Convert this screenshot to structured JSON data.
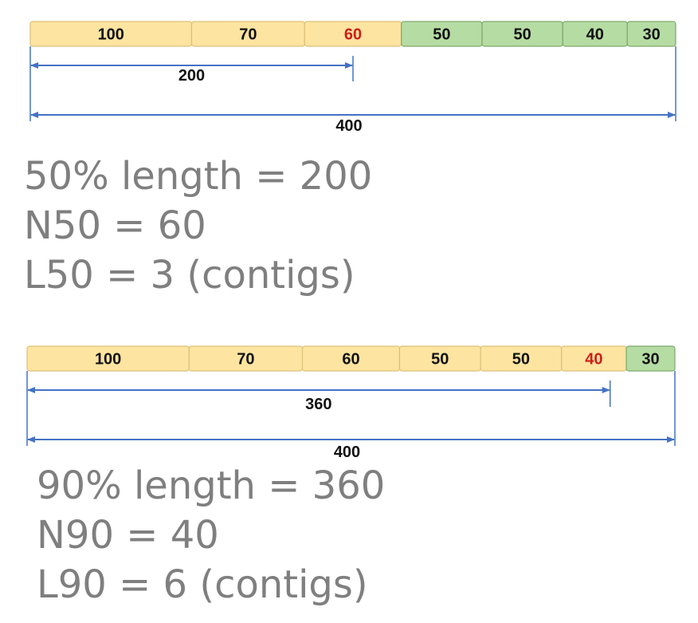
{
  "colors": {
    "yellow_fill": "#fde4a0",
    "yellow_stroke": "#dcc078",
    "green_fill": "#b5dca3",
    "green_stroke": "#7fa86c",
    "highlight_text": "#cc1f1a",
    "normal_text": "#111111",
    "arrow": "#4472c4",
    "stats_text": "#7f7f7f"
  },
  "examples": [
    {
      "contigs": [
        {
          "label": "100",
          "length": 100,
          "fill": "yellow",
          "highlight": false
        },
        {
          "label": "70",
          "length": 70,
          "fill": "yellow",
          "highlight": false
        },
        {
          "label": "60",
          "length": 60,
          "fill": "yellow",
          "highlight": true
        },
        {
          "label": "50",
          "length": 50,
          "fill": "green",
          "highlight": false
        },
        {
          "label": "50",
          "length": 50,
          "fill": "green",
          "highlight": false
        },
        {
          "label": "40",
          "length": 40,
          "fill": "green",
          "highlight": false
        },
        {
          "label": "30",
          "length": 30,
          "fill": "green",
          "highlight": false
        }
      ],
      "partial_span": {
        "label": "200",
        "value": 200
      },
      "total_span": {
        "label": "400",
        "value": 400
      },
      "stats": {
        "line1": "50% length = 200",
        "line2": "N50 = 60",
        "line3": "L50 = 3 (contigs)"
      }
    },
    {
      "contigs": [
        {
          "label": "100",
          "length": 100,
          "fill": "yellow",
          "highlight": false
        },
        {
          "label": "70",
          "length": 70,
          "fill": "yellow",
          "highlight": false
        },
        {
          "label": "60",
          "length": 60,
          "fill": "yellow",
          "highlight": false
        },
        {
          "label": "50",
          "length": 50,
          "fill": "yellow",
          "highlight": false
        },
        {
          "label": "50",
          "length": 50,
          "fill": "yellow",
          "highlight": false
        },
        {
          "label": "40",
          "length": 40,
          "fill": "yellow",
          "highlight": true
        },
        {
          "label": "30",
          "length": 30,
          "fill": "green",
          "highlight": false
        }
      ],
      "partial_span": {
        "label": "360",
        "value": 360
      },
      "total_span": {
        "label": "400",
        "value": 400
      },
      "stats": {
        "line1": "90% length = 360",
        "line2": "N90 = 40",
        "line3": "L90 = 6 (contigs)"
      }
    }
  ]
}
